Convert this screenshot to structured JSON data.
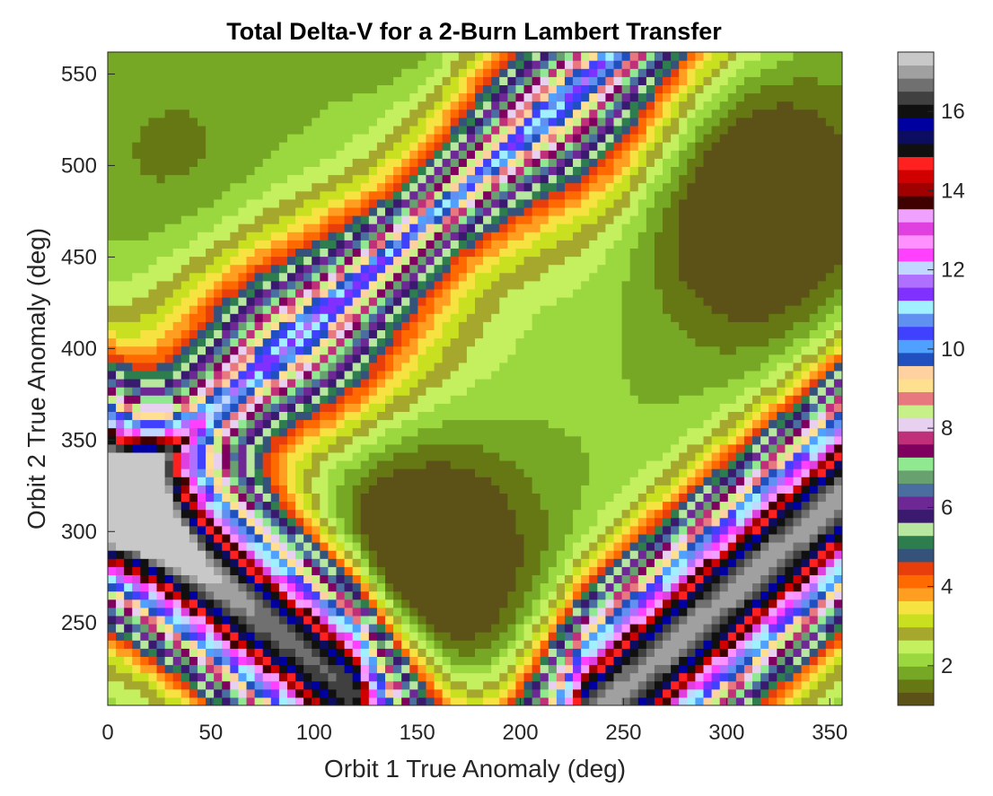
{
  "chart_data": {
    "type": "heatmap",
    "subtype": "filled-contour",
    "title": "Total Delta-V for a 2-Burn Lambert Transfer",
    "xlabel": "Orbit 1 True Anomaly (deg)",
    "ylabel": "Orbit 2 True Anomaly (deg)",
    "xlim": [
      0,
      356
    ],
    "ylim": [
      205,
      562
    ],
    "x_ticks": [
      0,
      50,
      100,
      150,
      200,
      250,
      300,
      350
    ],
    "y_ticks": [
      250,
      300,
      350,
      400,
      450,
      500,
      550
    ],
    "colorbar": {
      "range": [
        1,
        17.5
      ],
      "ticks": [
        2,
        4,
        6,
        8,
        10,
        12,
        14,
        16
      ],
      "levels": 50
    },
    "grid": false,
    "features": {
      "low_regions": [
        {
          "x": 148,
          "y": 285,
          "value": 1.0
        },
        {
          "x": 312,
          "y": 482,
          "value": 1.0
        },
        {
          "x": 38,
          "y": 488,
          "value": 1.8
        },
        {
          "x": 165,
          "y": 560,
          "value": 1.5
        }
      ],
      "high_bands": [
        {
          "x": 0,
          "y": 320,
          "value": 17.0
        },
        {
          "x": 350,
          "y": 314,
          "value": 17.0
        }
      ],
      "singular_points": [
        {
          "x": 90,
          "y": 405
        },
        {
          "x": 215,
          "y": 530
        }
      ]
    }
  }
}
